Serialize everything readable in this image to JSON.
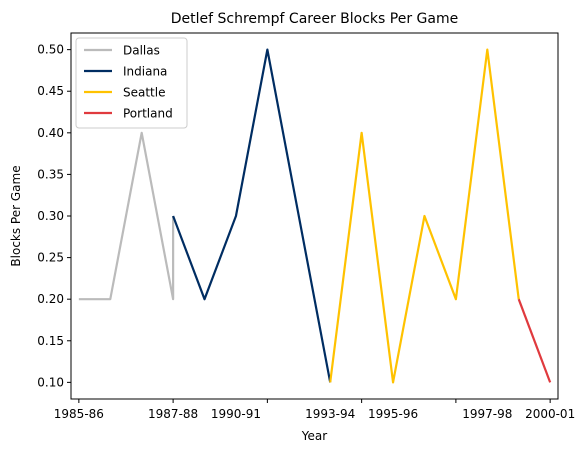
{
  "chart_data": {
    "type": "line",
    "title": "Detlef Schrempf Career Blocks Per Game",
    "xlabel": "Year",
    "ylabel": "Blocks Per Game",
    "ylim": [
      0.08,
      0.52
    ],
    "xlim": [
      -0.25,
      15.25
    ],
    "y_ticks": [
      0.1,
      0.15,
      0.2,
      0.25,
      0.3,
      0.35,
      0.4,
      0.45,
      0.5
    ],
    "y_tick_labels": [
      "0.10",
      "0.15",
      "0.20",
      "0.25",
      "0.30",
      "0.35",
      "0.40",
      "0.45",
      "0.50"
    ],
    "x_ticks": [
      0,
      3,
      6,
      9,
      12,
      15
    ],
    "x_tick_labels": [
      "1985-86",
      "1987-88",
      "1990-91",
      "1993-94",
      "1995-96",
      "1997-98",
      "2000-01"
    ],
    "x_tick_positions": [
      0,
      3,
      5,
      8,
      10,
      13,
      15
    ],
    "legend_position": "top-left",
    "series": [
      {
        "name": "Dallas",
        "color": "#bbbbbb",
        "x": [
          0,
          1,
          2,
          3,
          3
        ],
        "y": [
          0.2,
          0.2,
          0.4,
          0.2,
          0.3
        ]
      },
      {
        "name": "Indiana",
        "color": "#002d62",
        "x": [
          3,
          4,
          5,
          6,
          8
        ],
        "y": [
          0.3,
          0.2,
          0.3,
          0.5,
          0.1
        ]
      },
      {
        "name": "Seattle",
        "color": "#ffc200",
        "x": [
          8,
          9,
          10,
          11,
          12,
          13,
          14
        ],
        "y": [
          0.1,
          0.4,
          0.1,
          0.3,
          0.2,
          0.5,
          0.2
        ]
      },
      {
        "name": "Portland",
        "color": "#e03a3e",
        "x": [
          14,
          15
        ],
        "y": [
          0.2,
          0.1
        ]
      }
    ]
  }
}
